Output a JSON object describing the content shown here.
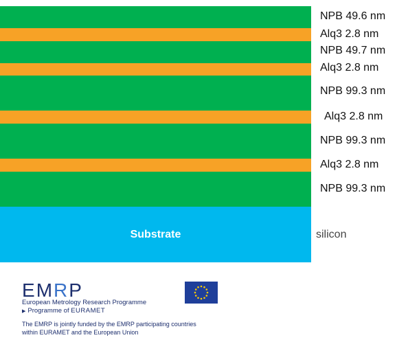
{
  "colors": {
    "npb": "#00b050",
    "alq3": "#f7a226",
    "substrate": "#00b8ee",
    "emrp_blue": "#1d2f6e",
    "eu_flag": "#1f3f9a",
    "eu_stars": "#ffcc00"
  },
  "layers": [
    {
      "material": "NPB",
      "thickness": "49.6 nm",
      "label": "NPB  49.6 nm"
    },
    {
      "material": "Alq3",
      "thickness": "2.8 nm",
      "label": "Alq3  2.8 nm"
    },
    {
      "material": "NPB",
      "thickness": "49.7 nm",
      "label": "NPB  49.7 nm"
    },
    {
      "material": "Alq3",
      "thickness": "2.8 nm",
      "label": "Alq3  2.8 nm"
    },
    {
      "material": "NPB",
      "thickness": "99.3 nm",
      "label": "NPB  99.3 nm"
    },
    {
      "material": "Alq3",
      "thickness": "2.8 nm",
      "label": "Alq3  2.8 nm"
    },
    {
      "material": "NPB",
      "thickness": "99.3 nm",
      "label": "NPB  99.3 nm"
    },
    {
      "material": "Alq3",
      "thickness": "2.8 nm",
      "label": "Alq3  2.8 nm"
    },
    {
      "material": "NPB",
      "thickness": "99.3 nm",
      "label": "NPB  99.3 nm"
    }
  ],
  "substrate": {
    "text": "Substrate",
    "material_label": "silicon"
  },
  "footer": {
    "logo": "EMRP",
    "programme_name": "European Metrology Research Programme",
    "programme_of": "Programme of",
    "euramet": "EURAMET",
    "funding_line1": "The EMRP is jointly funded by the EMRP participating countries",
    "funding_line2": "within EURAMET and the European Union",
    "flag_icon": "eu-flag-icon"
  }
}
